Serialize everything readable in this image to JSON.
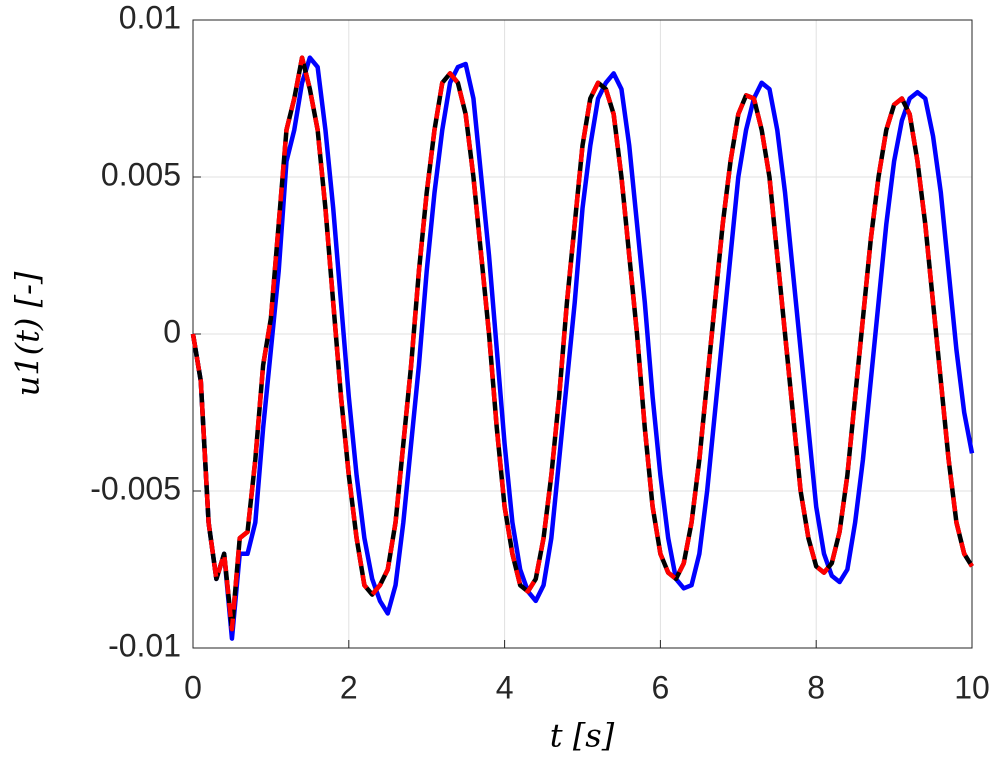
{
  "chart_data": {
    "type": "line",
    "xlabel": "t [s]",
    "ylabel": "u1(t) [-]",
    "x": [
      0,
      0.1,
      0.2,
      0.3,
      0.4,
      0.5,
      0.6,
      0.7,
      0.8,
      0.9,
      1,
      1.1,
      1.2,
      1.3,
      1.4,
      1.5,
      1.6,
      1.7,
      1.8,
      1.9,
      2,
      2.1,
      2.2,
      2.3,
      2.4,
      2.5,
      2.6,
      2.7,
      2.8,
      2.9,
      3,
      3.1,
      3.2,
      3.3,
      3.4,
      3.5,
      3.6,
      3.7,
      3.8,
      3.9,
      4,
      4.1,
      4.2,
      4.3,
      4.4,
      4.5,
      4.6,
      4.7,
      4.8,
      4.9,
      5,
      5.1,
      5.2,
      5.3,
      5.4,
      5.5,
      5.6,
      5.7,
      5.8,
      5.9,
      6,
      6.1,
      6.2,
      6.3,
      6.4,
      6.5,
      6.6,
      6.7,
      6.8,
      6.9,
      7,
      7.1,
      7.2,
      7.3,
      7.4,
      7.5,
      7.6,
      7.7,
      7.8,
      7.9,
      8,
      8.1,
      8.2,
      8.3,
      8.4,
      8.5,
      8.6,
      8.7,
      8.8,
      8.9,
      9,
      9.1,
      9.2,
      9.3,
      9.4,
      9.5,
      9.6,
      9.7,
      9.8,
      9.9,
      10
    ],
    "series": [
      {
        "color": "#0000ff",
        "dash": false,
        "values": [
          0,
          -0.0015,
          -0.006,
          -0.0078,
          -0.007,
          -0.0097,
          -0.007,
          -0.007,
          -0.006,
          -0.003,
          -0.0005,
          0.002,
          0.0055,
          0.0065,
          0.008,
          0.0088,
          0.0085,
          0.0065,
          0.004,
          0.001,
          -0.002,
          -0.0045,
          -0.0065,
          -0.0078,
          -0.0085,
          -0.0089,
          -0.008,
          -0.006,
          -0.0035,
          -0.001,
          0.002,
          0.0045,
          0.0065,
          0.008,
          0.0085,
          0.0086,
          0.0075,
          0.005,
          0.0025,
          -0.0005,
          -0.0035,
          -0.006,
          -0.0075,
          -0.0082,
          -0.0085,
          -0.008,
          -0.0065,
          -0.004,
          -0.0015,
          0.001,
          0.004,
          0.006,
          0.0075,
          0.008,
          0.0083,
          0.0078,
          0.006,
          0.0035,
          0.001,
          -0.002,
          -0.0045,
          -0.0065,
          -0.0078,
          -0.0081,
          -0.008,
          -0.007,
          -0.005,
          -0.0025,
          0,
          0.0025,
          0.005,
          0.0065,
          0.0075,
          0.008,
          0.0078,
          0.0065,
          0.0045,
          0.002,
          -0.0005,
          -0.003,
          -0.0055,
          -0.007,
          -0.0077,
          -0.0079,
          -0.0075,
          -0.006,
          -0.004,
          -0.0015,
          0.001,
          0.0035,
          0.0055,
          0.0068,
          0.0075,
          0.0077,
          0.0075,
          0.0063,
          0.0045,
          0.002,
          -0.0005,
          -0.0025,
          -0.0038
        ]
      },
      {
        "color": "#000000",
        "dash": false,
        "values": [
          0,
          -0.0015,
          -0.006,
          -0.0078,
          -0.007,
          -0.0094,
          -0.0065,
          -0.0063,
          -0.004,
          -0.001,
          0.0005,
          0.0035,
          0.0065,
          0.0075,
          0.0088,
          0.0078,
          0.0065,
          0.004,
          0.001,
          -0.002,
          -0.0045,
          -0.0065,
          -0.008,
          -0.0083,
          -0.008,
          -0.0075,
          -0.006,
          -0.0035,
          -0.001,
          0.002,
          0.0045,
          0.0065,
          0.008,
          0.0083,
          0.008,
          0.007,
          0.005,
          0.0025,
          0,
          -0.003,
          -0.0055,
          -0.007,
          -0.008,
          -0.0082,
          -0.0078,
          -0.0065,
          -0.0045,
          -0.002,
          0.001,
          0.0035,
          0.006,
          0.0075,
          0.008,
          0.0078,
          0.007,
          0.005,
          0.0025,
          0,
          -0.003,
          -0.0055,
          -0.007,
          -0.0076,
          -0.0078,
          -0.0073,
          -0.006,
          -0.004,
          -0.0015,
          0.001,
          0.0035,
          0.0055,
          0.007,
          0.0076,
          0.0075,
          0.0065,
          0.005,
          0.0025,
          0,
          -0.0025,
          -0.005,
          -0.0065,
          -0.0074,
          -0.0076,
          -0.0073,
          -0.0063,
          -0.0045,
          -0.002,
          0.0005,
          0.003,
          0.005,
          0.0065,
          0.0073,
          0.0075,
          0.007,
          0.0055,
          0.0035,
          0.001,
          -0.0015,
          -0.004,
          -0.006,
          -0.007,
          -0.0074
        ]
      },
      {
        "color": "#ff0000",
        "dash": true,
        "values": [
          0,
          -0.0015,
          -0.006,
          -0.0078,
          -0.007,
          -0.0094,
          -0.0065,
          -0.0063,
          -0.004,
          -0.001,
          0.0005,
          0.0035,
          0.0065,
          0.0075,
          0.0088,
          0.0078,
          0.0065,
          0.004,
          0.001,
          -0.002,
          -0.0045,
          -0.0065,
          -0.008,
          -0.0083,
          -0.008,
          -0.0075,
          -0.006,
          -0.0035,
          -0.001,
          0.002,
          0.0045,
          0.0065,
          0.008,
          0.0083,
          0.008,
          0.007,
          0.005,
          0.0025,
          0,
          -0.003,
          -0.0055,
          -0.007,
          -0.008,
          -0.0082,
          -0.0078,
          -0.0065,
          -0.0045,
          -0.002,
          0.001,
          0.0035,
          0.006,
          0.0075,
          0.008,
          0.0078,
          0.007,
          0.005,
          0.0025,
          0,
          -0.003,
          -0.0055,
          -0.007,
          -0.0076,
          -0.0078,
          -0.0073,
          -0.006,
          -0.004,
          -0.0015,
          0.001,
          0.0035,
          0.0055,
          0.007,
          0.0076,
          0.0075,
          0.0065,
          0.005,
          0.0025,
          0,
          -0.0025,
          -0.005,
          -0.0065,
          -0.0074,
          -0.0076,
          -0.0073,
          -0.0063,
          -0.0045,
          -0.002,
          0.0005,
          0.003,
          0.005,
          0.0065,
          0.0073,
          0.0075,
          0.007,
          0.0055,
          0.0035,
          0.001,
          -0.0015,
          -0.004,
          -0.006,
          -0.007,
          -0.0074
        ]
      }
    ],
    "xlim": [
      0,
      10
    ],
    "xticks": [
      0,
      2,
      4,
      6,
      8,
      10
    ],
    "ylim": [
      -0.01,
      0.01
    ],
    "yticks": [
      -0.01,
      -0.005,
      0,
      0.005,
      0.01
    ],
    "grid": true
  }
}
